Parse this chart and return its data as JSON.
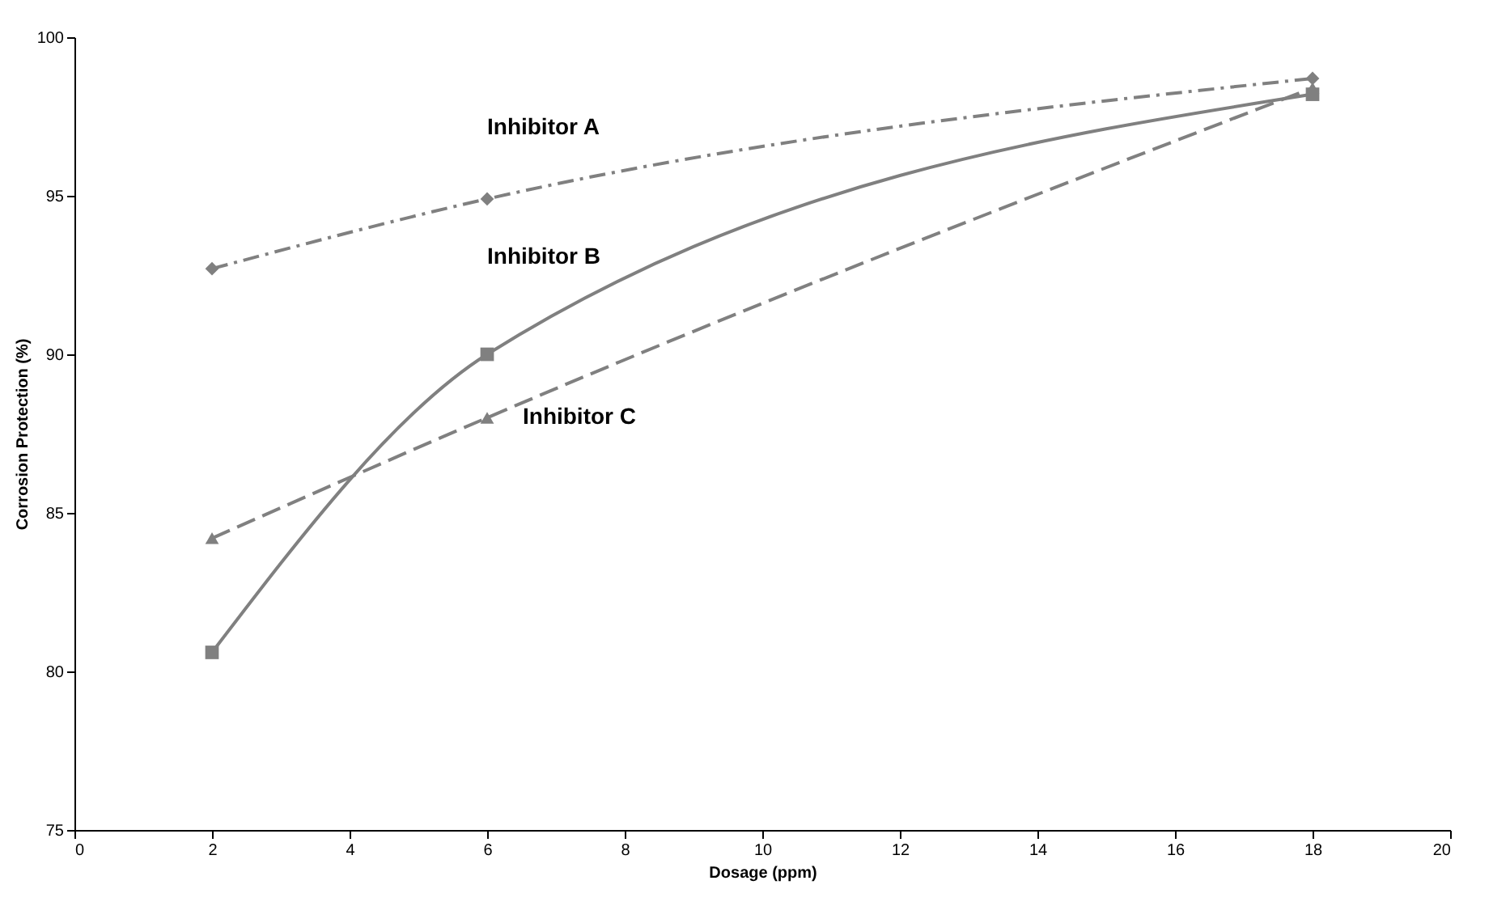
{
  "chart_data": {
    "type": "line",
    "xlabel": "Dosage (ppm)",
    "ylabel": "Corrosion Protection (%)",
    "xlim": [
      0,
      20
    ],
    "xticks": [
      0,
      2,
      4,
      6,
      8,
      10,
      12,
      14,
      16,
      18,
      20
    ],
    "ylim": [
      75,
      100
    ],
    "yticks": [
      75,
      80,
      85,
      90,
      95,
      100
    ],
    "x": [
      2,
      6,
      18
    ],
    "grid": false,
    "series": [
      {
        "name": "Inhibitor A",
        "color": "#808080",
        "values": [
          92.7,
          94.9,
          98.7
        ],
        "marker": "diamond",
        "line_style": "dotted"
      },
      {
        "name": "Inhibitor B",
        "color": "#808080",
        "values": [
          80.6,
          90.0,
          98.2
        ],
        "marker": "square",
        "line_style": "solid"
      },
      {
        "name": "Inhibitor C",
        "color": "#808080",
        "values": [
          84.2,
          88.0,
          98.4
        ],
        "marker": "triangle",
        "line_style": "dashed"
      }
    ]
  }
}
